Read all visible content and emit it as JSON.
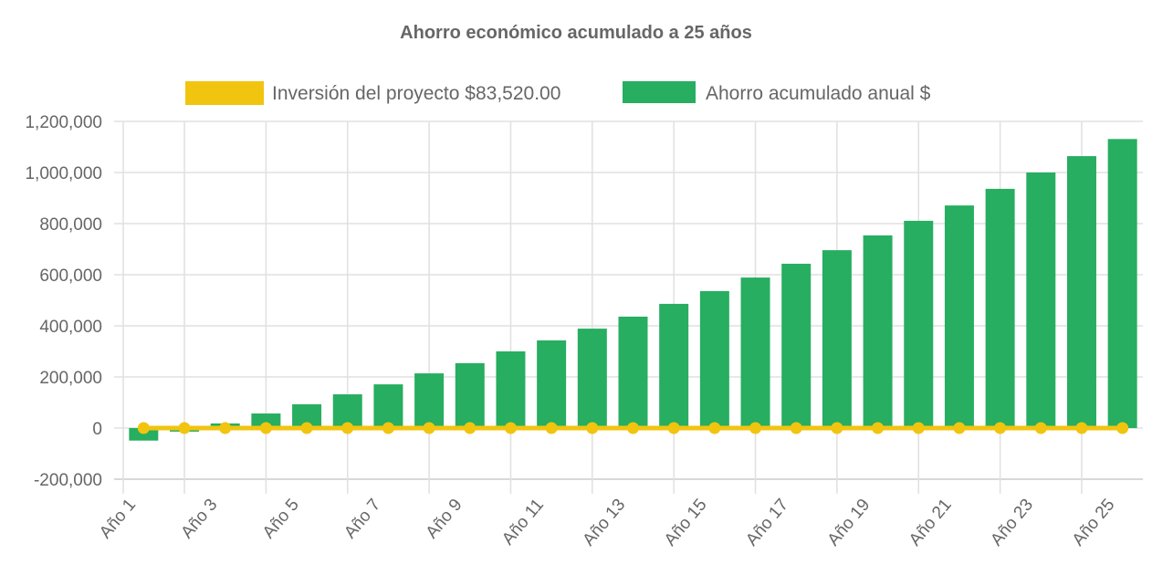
{
  "chart_data": {
    "type": "bar",
    "title": "Ahorro económico acumulado a 25 años",
    "categories": [
      "Año 1",
      "Año 2",
      "Año 3",
      "Año 4",
      "Año 5",
      "Año 6",
      "Año 7",
      "Año 8",
      "Año 9",
      "Año 10",
      "Año 11",
      "Año 12",
      "Año 13",
      "Año 14",
      "Año 15",
      "Año 16",
      "Año 17",
      "Año 18",
      "Año 19",
      "Año 20",
      "Año 21",
      "Año 22",
      "Año 23",
      "Año 24",
      "Año 25"
    ],
    "series": [
      {
        "name": "Inversión del proyecto $83,520.00",
        "type": "line",
        "color": "#f1c40f",
        "values": [
          0,
          0,
          0,
          0,
          0,
          0,
          0,
          0,
          0,
          0,
          0,
          0,
          0,
          0,
          0,
          0,
          0,
          0,
          0,
          0,
          0,
          0,
          0,
          0,
          0
        ]
      },
      {
        "name": "Ahorro acumulado anual $",
        "type": "bar",
        "color": "#27ae60",
        "values": [
          -49000,
          -14000,
          18000,
          57000,
          93000,
          132000,
          171000,
          214000,
          254000,
          300000,
          343000,
          389000,
          436000,
          486000,
          536000,
          589000,
          643000,
          696000,
          754000,
          811000,
          871000,
          936000,
          1000000,
          1064000,
          1131000
        ]
      }
    ],
    "xlabel": "",
    "ylabel": "",
    "ylim": [
      -200000,
      1200000
    ],
    "yticks": [
      -200000,
      0,
      200000,
      400000,
      600000,
      800000,
      1000000,
      1200000
    ],
    "ytick_labels": [
      "-200,000",
      "0",
      "200,000",
      "400,000",
      "600,000",
      "800,000",
      "1,000,000",
      "1,200,000"
    ],
    "grid": true,
    "legend_position": "top"
  }
}
